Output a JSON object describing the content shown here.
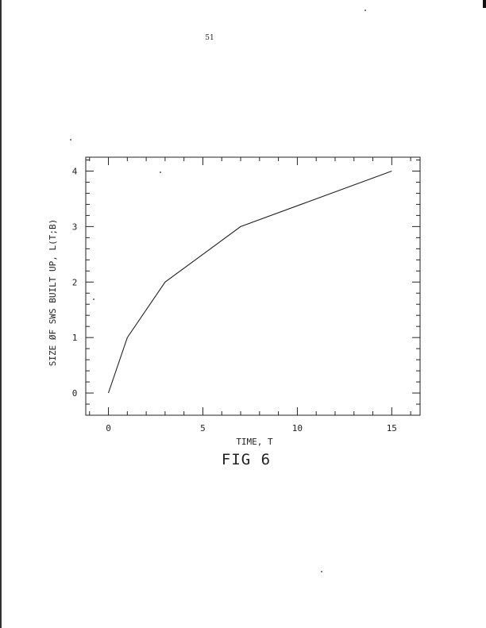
{
  "page": {
    "number": "51"
  },
  "figure": {
    "caption": "FIG 6"
  },
  "chart_data": {
    "type": "line",
    "title": "",
    "xlabel": "TIME, T",
    "ylabel": "SIZE ØF SWS BUILT UP, L(T;B)",
    "xlim": [
      -1.2,
      16.5
    ],
    "ylim": [
      -0.4,
      4.25
    ],
    "xticks": [
      0,
      5,
      10,
      15
    ],
    "yticks": [
      0,
      1,
      2,
      3,
      4
    ],
    "x_minor_step": 1,
    "y_minor_step": 0.2,
    "grid": false,
    "series": [
      {
        "x": [
          0,
          1,
          3,
          7,
          15
        ],
        "y": [
          0,
          1,
          2,
          3,
          4
        ]
      }
    ]
  }
}
